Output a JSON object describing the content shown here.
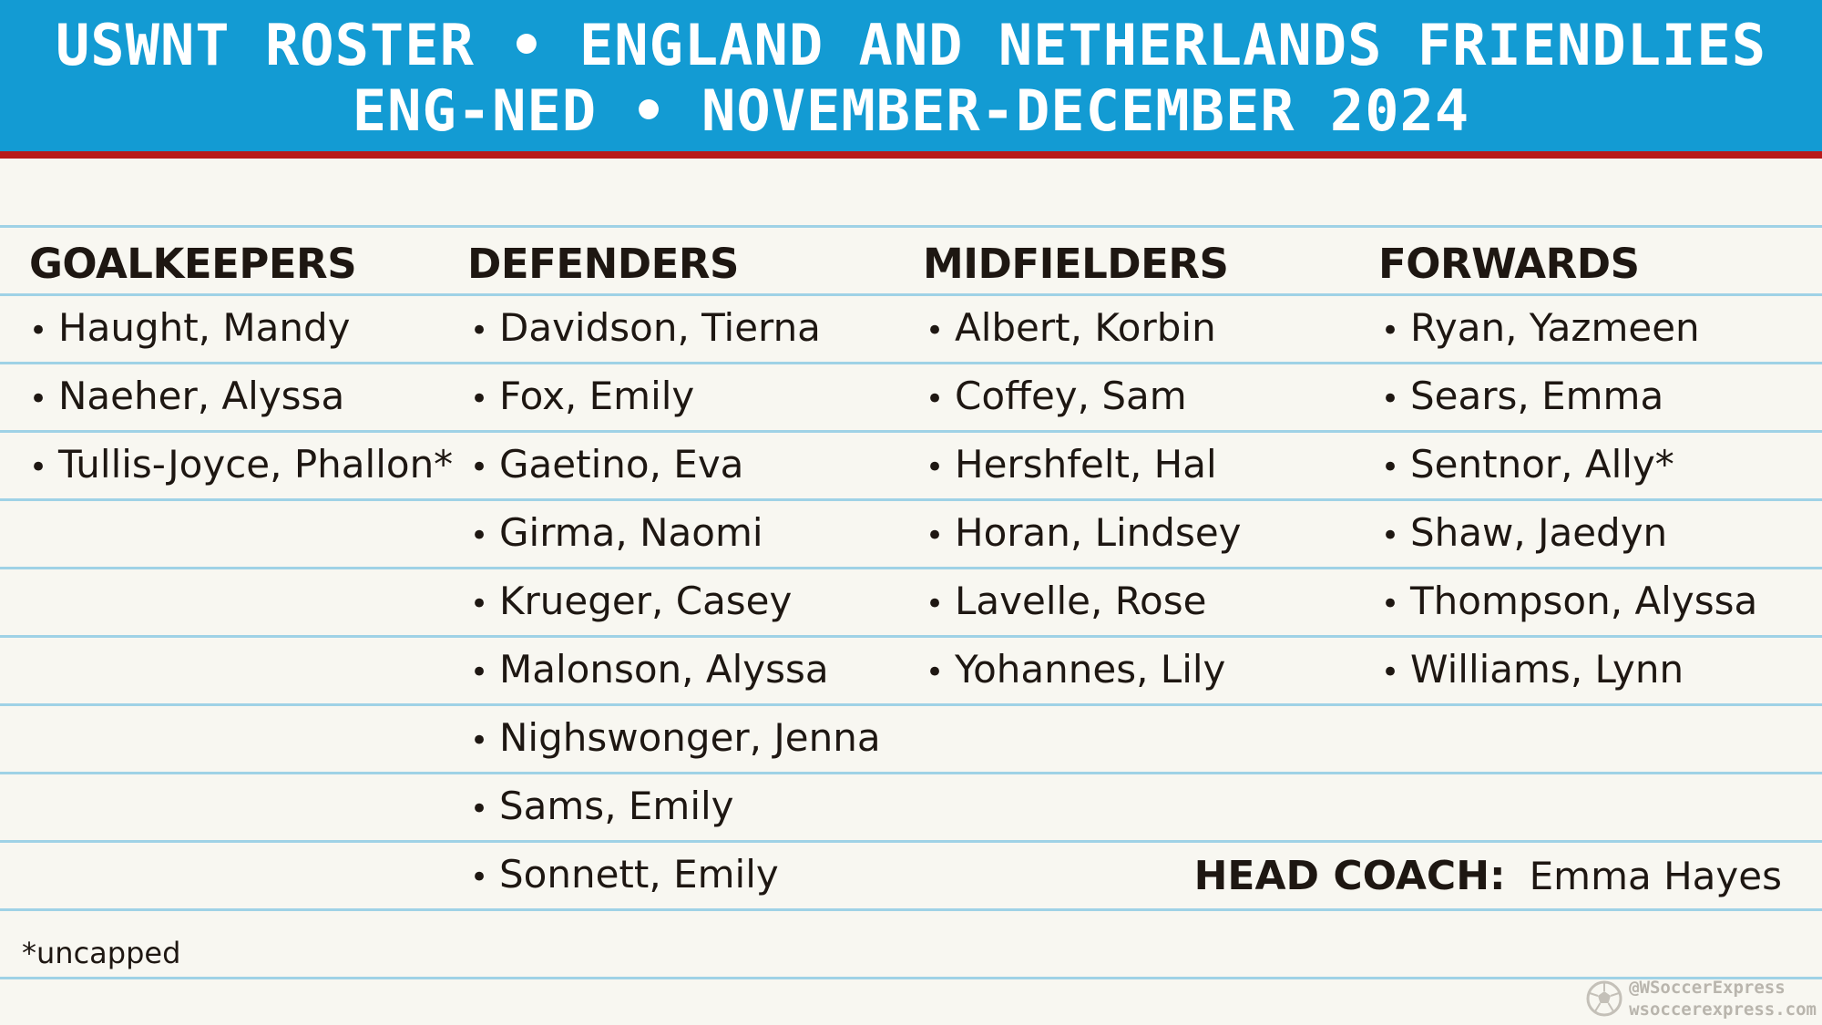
{
  "header": {
    "line1": "USWNT ROSTER • ENGLAND AND NETHERLANDS FRIENDLIES",
    "line2": "ENG-NED • NOVEMBER-DECEMBER 2024"
  },
  "columns": {
    "goalkeepers": {
      "title": "GOALKEEPERS",
      "players": [
        "Haught, Mandy",
        "Naeher, Alyssa",
        "Tullis-Joyce, Phallon*"
      ]
    },
    "defenders": {
      "title": "DEFENDERS",
      "players": [
        "Davidson, Tierna",
        "Fox, Emily",
        "Gaetino, Eva",
        "Girma, Naomi",
        "Krueger, Casey",
        "Malonson, Alyssa",
        "Nighswonger, Jenna",
        "Sams, Emily",
        "Sonnett, Emily"
      ]
    },
    "midfielders": {
      "title": "MIDFIELDERS",
      "players": [
        "Albert, Korbin",
        "Coffey, Sam",
        "Hershfelt, Hal",
        "Horan, Lindsey",
        "Lavelle, Rose",
        "Yohannes, Lily"
      ]
    },
    "forwards": {
      "title": "FORWARDS",
      "players": [
        "Ryan, Yazmeen",
        "Sears, Emma",
        "Sentnor, Ally*",
        "Shaw, Jaedyn",
        "Thompson, Alyssa",
        "Williams, Lynn"
      ]
    }
  },
  "bullet": "•",
  "coach": {
    "label": "HEAD COACH:",
    "name": "Emma Hayes"
  },
  "footnote": "*uncapped",
  "watermark": {
    "handle": "@WSoccerExpress",
    "site": "wsoccerexpress.com",
    "icon": "soccer-ball-icon"
  },
  "colors": {
    "header_bg": "#139bd3",
    "header_border": "#b81a1a",
    "row_rule": "#9fd2e6",
    "page_bg": "#f8f7f1"
  }
}
